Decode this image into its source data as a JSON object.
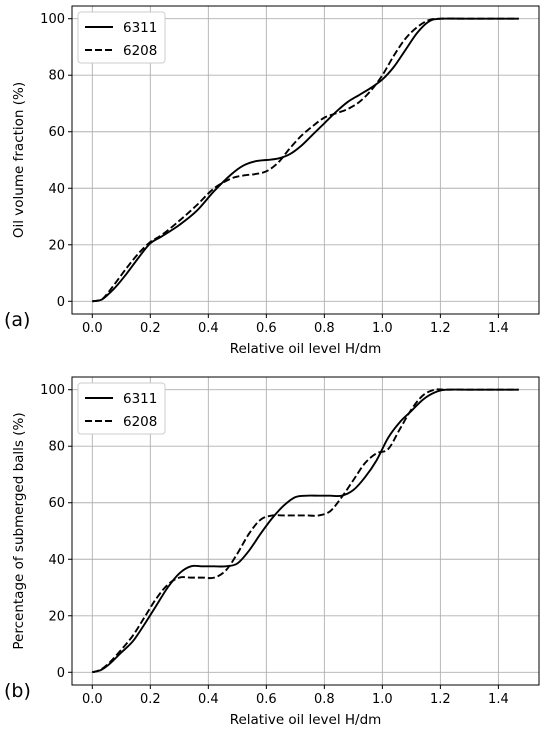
{
  "chart_data": [
    {
      "type": "line",
      "panel_label": "(a)",
      "title": "",
      "xlabel": "Relative oil level H/dm",
      "ylabel": "Oil volume fraction (%)",
      "xlim": [
        -0.07,
        1.54
      ],
      "ylim": [
        -4.5,
        104.5
      ],
      "xticks": [
        0.0,
        0.2,
        0.4,
        0.6,
        0.8,
        1.0,
        1.2,
        1.4
      ],
      "xtick_labels": [
        "0.0",
        "0.2",
        "0.4",
        "0.6",
        "0.8",
        "1.0",
        "1.2",
        "1.4"
      ],
      "yticks": [
        0,
        20,
        40,
        60,
        80,
        100
      ],
      "ytick_labels": [
        "0",
        "20",
        "40",
        "60",
        "80",
        "100"
      ],
      "grid": true,
      "legend_position": "top-left",
      "series": [
        {
          "name": "6311",
          "style": "solid",
          "color": "#000000",
          "x": [
            0.0,
            0.03,
            0.05,
            0.08,
            0.12,
            0.16,
            0.2,
            0.24,
            0.3,
            0.36,
            0.42,
            0.48,
            0.52,
            0.56,
            0.6,
            0.64,
            0.68,
            0.72,
            0.76,
            0.8,
            0.84,
            0.88,
            0.92,
            0.96,
            1.0,
            1.04,
            1.08,
            1.12,
            1.16,
            1.2,
            1.3,
            1.4,
            1.47
          ],
          "y": [
            0,
            0.5,
            2,
            5,
            10,
            15.5,
            20.5,
            23,
            27,
            32,
            39,
            45,
            48,
            49.5,
            50,
            50.5,
            52,
            55,
            59,
            63,
            67,
            70.5,
            73,
            75.5,
            78.5,
            83,
            89,
            95,
            99,
            100,
            100,
            100,
            100
          ]
        },
        {
          "name": "6208",
          "style": "dashed",
          "color": "#000000",
          "x": [
            0.0,
            0.03,
            0.05,
            0.08,
            0.12,
            0.16,
            0.2,
            0.24,
            0.3,
            0.36,
            0.42,
            0.48,
            0.52,
            0.56,
            0.6,
            0.64,
            0.68,
            0.72,
            0.76,
            0.8,
            0.84,
            0.88,
            0.92,
            0.96,
            1.0,
            1.04,
            1.08,
            1.12,
            1.16,
            1.2,
            1.3,
            1.4,
            1.47
          ],
          "y": [
            0,
            0.5,
            2.5,
            6.5,
            12,
            17,
            21,
            23.5,
            28.5,
            34,
            40,
            43.5,
            44.5,
            45,
            46,
            49,
            54,
            58.5,
            62,
            65,
            66.5,
            68,
            70.5,
            74.5,
            80,
            87,
            93,
            97,
            99.5,
            100,
            100,
            100,
            100
          ]
        }
      ]
    },
    {
      "type": "line",
      "panel_label": "(b)",
      "title": "",
      "xlabel": "Relative oil level H/dm",
      "ylabel": "Percentage of submerged balls (%)",
      "xlim": [
        -0.07,
        1.54
      ],
      "ylim": [
        -4.5,
        104.5
      ],
      "xticks": [
        0.0,
        0.2,
        0.4,
        0.6,
        0.8,
        1.0,
        1.2,
        1.4
      ],
      "xtick_labels": [
        "0.0",
        "0.2",
        "0.4",
        "0.6",
        "0.8",
        "1.0",
        "1.2",
        "1.4"
      ],
      "yticks": [
        0,
        20,
        40,
        60,
        80,
        100
      ],
      "ytick_labels": [
        "0",
        "20",
        "40",
        "60",
        "80",
        "100"
      ],
      "grid": true,
      "legend_position": "top-left",
      "series": [
        {
          "name": "6311",
          "style": "solid",
          "color": "#000000",
          "x": [
            0.0,
            0.03,
            0.06,
            0.1,
            0.14,
            0.18,
            0.22,
            0.26,
            0.3,
            0.34,
            0.38,
            0.42,
            0.46,
            0.5,
            0.54,
            0.58,
            0.62,
            0.66,
            0.7,
            0.74,
            0.78,
            0.82,
            0.86,
            0.9,
            0.94,
            0.98,
            1.02,
            1.06,
            1.1,
            1.14,
            1.18,
            1.22,
            1.3,
            1.4,
            1.47
          ],
          "y": [
            0,
            0.8,
            3,
            7,
            11,
            17,
            23.5,
            30,
            35,
            37.5,
            37.5,
            37.5,
            37.5,
            38.5,
            43,
            49,
            54.5,
            59,
            62,
            62.5,
            62.5,
            62.5,
            62.5,
            64.5,
            69,
            75,
            83,
            88.5,
            92.5,
            96.5,
            99,
            100,
            100,
            100,
            100
          ]
        },
        {
          "name": "6208",
          "style": "dashed",
          "color": "#000000",
          "x": [
            0.0,
            0.03,
            0.06,
            0.1,
            0.14,
            0.18,
            0.22,
            0.26,
            0.3,
            0.34,
            0.38,
            0.42,
            0.46,
            0.5,
            0.54,
            0.58,
            0.62,
            0.66,
            0.7,
            0.74,
            0.78,
            0.82,
            0.86,
            0.9,
            0.94,
            0.98,
            1.02,
            1.06,
            1.1,
            1.14,
            1.18,
            1.22,
            1.3,
            1.4,
            1.47
          ],
          "y": [
            0,
            1,
            3.5,
            8,
            13,
            19.5,
            26,
            31,
            33.5,
            33.5,
            33.5,
            33.5,
            36,
            42,
            49,
            54,
            55.5,
            55.5,
            55.5,
            55.5,
            55.5,
            57,
            62,
            68,
            74,
            77.5,
            79,
            86,
            93,
            98,
            100,
            100,
            100,
            100,
            100
          ]
        }
      ]
    }
  ]
}
